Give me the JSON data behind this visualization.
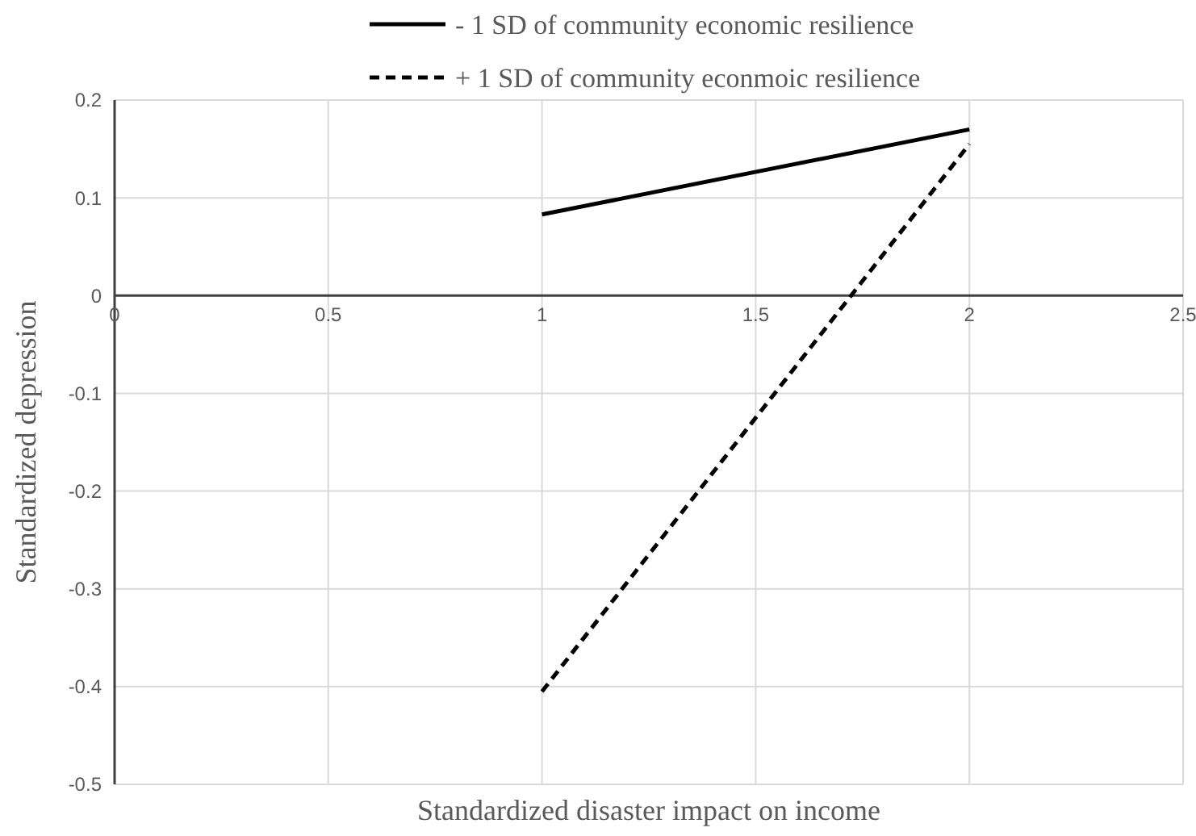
{
  "chart_data": {
    "type": "line",
    "xlabel": "Standardized disaster impact on income",
    "ylabel": "Standardized depression",
    "x": [
      1,
      2
    ],
    "series": [
      {
        "name": "- 1 SD of community economic resilience",
        "color": "#000000",
        "values": [
          0.083,
          0.17
        ],
        "line_style": "solid"
      },
      {
        "name": "+ 1 SD of community econmoic resilience",
        "color": "#000000",
        "values": [
          -0.405,
          0.155
        ],
        "line_style": "dashed"
      }
    ],
    "xlim": [
      0,
      2.5
    ],
    "xticks": [
      0,
      0.5,
      1,
      1.5,
      2,
      2.5
    ],
    "ylim": [
      -0.5,
      0.2
    ],
    "yticks": [
      -0.5,
      -0.4,
      -0.3,
      -0.2,
      -0.1,
      0,
      0.1,
      0.2
    ],
    "grid": true,
    "legend": "top",
    "marker": "none"
  }
}
